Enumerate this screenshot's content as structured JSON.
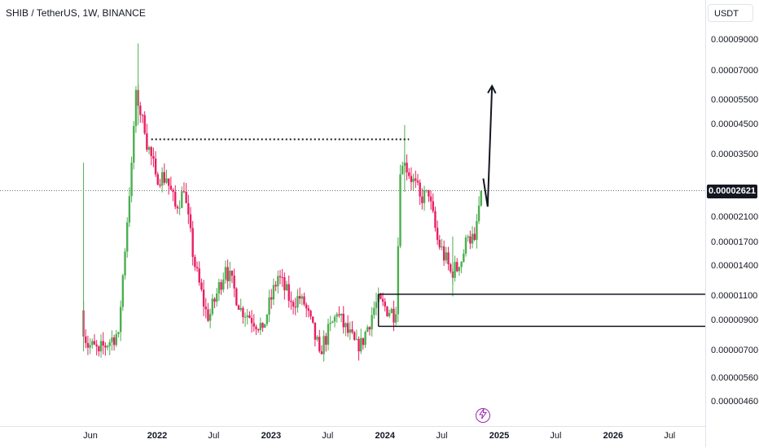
{
  "header": {
    "title": "SHIB / TetherUS, 1W, BINANCE"
  },
  "price_axis": {
    "currency": "USDT",
    "last_price_label": "0.00002621"
  },
  "icons": {
    "flash": "lightning-icon"
  },
  "colors": {
    "up": "#4caf50",
    "down": "#e91e63",
    "text": "#131722",
    "grid_line": "#e0e3eb"
  },
  "chart_data": {
    "type": "candlestick",
    "title": "SHIB / TetherUS, 1W, BINANCE",
    "y_scale": "log",
    "y_ticks": [
      "0.00009000",
      "0.00007000",
      "0.00005500",
      "0.00004500",
      "0.00003500",
      "0.00002100",
      "0.00001700",
      "0.00001400",
      "0.00001100",
      "0.00000900",
      "0.00000700",
      "0.00000560",
      "0.00000460"
    ],
    "x_ticks": [
      {
        "label": "Jun",
        "date": "2021-06-01",
        "year": false
      },
      {
        "label": "2022",
        "date": "2022-01-01",
        "year": true
      },
      {
        "label": "Jul",
        "date": "2022-07-01",
        "year": false
      },
      {
        "label": "2023",
        "date": "2023-01-01",
        "year": true
      },
      {
        "label": "Jul",
        "date": "2023-07-01",
        "year": false
      },
      {
        "label": "2024",
        "date": "2024-01-01",
        "year": true
      },
      {
        "label": "Jul",
        "date": "2024-07-01",
        "year": false
      },
      {
        "label": "2025",
        "date": "2025-01-01",
        "year": true
      },
      {
        "label": "Jul",
        "date": "2025-07-01",
        "year": false
      },
      {
        "label": "2026",
        "date": "2026-01-01",
        "year": true
      },
      {
        "label": "Jul",
        "date": "2026-07-01",
        "year": false
      }
    ],
    "last_price": 2.621e-05,
    "anchors": [
      {
        "date": "2021-05-10",
        "price": 9.8e-06
      },
      {
        "date": "2021-05-24",
        "price": 7.5e-06
      },
      {
        "date": "2021-07-05",
        "price": 7e-06
      },
      {
        "date": "2021-09-06",
        "price": 8.2e-06
      },
      {
        "date": "2021-10-18",
        "price": 3.3e-05
      },
      {
        "date": "2021-11-01",
        "price": 6e-05
      },
      {
        "date": "2021-11-29",
        "price": 4.2e-05
      },
      {
        "date": "2022-01-03",
        "price": 3e-05
      },
      {
        "date": "2022-02-07",
        "price": 2.9e-05
      },
      {
        "date": "2022-03-07",
        "price": 2.3e-05
      },
      {
        "date": "2022-04-04",
        "price": 2.6e-05
      },
      {
        "date": "2022-05-09",
        "price": 1.4e-05
      },
      {
        "date": "2022-06-20",
        "price": 9e-06
      },
      {
        "date": "2022-08-15",
        "price": 1.4e-05
      },
      {
        "date": "2022-10-03",
        "price": 1e-05
      },
      {
        "date": "2022-12-12",
        "price": 8.5e-06
      },
      {
        "date": "2023-01-30",
        "price": 1.3e-05
      },
      {
        "date": "2023-03-13",
        "price": 1.05e-05
      },
      {
        "date": "2023-04-17",
        "price": 1.1e-05
      },
      {
        "date": "2023-06-12",
        "price": 7e-06
      },
      {
        "date": "2023-08-07",
        "price": 9.5e-06
      },
      {
        "date": "2023-10-16",
        "price": 7e-06
      },
      {
        "date": "2023-12-11",
        "price": 1.05e-05
      },
      {
        "date": "2024-02-12",
        "price": 9.5e-06
      },
      {
        "date": "2024-02-26",
        "price": 3e-05
      },
      {
        "date": "2024-03-11",
        "price": 3.3e-05
      },
      {
        "date": "2024-04-29",
        "price": 2.5e-05
      },
      {
        "date": "2024-05-27",
        "price": 2.5e-05
      },
      {
        "date": "2024-06-24",
        "price": 1.75e-05
      },
      {
        "date": "2024-08-05",
        "price": 1.35e-05
      },
      {
        "date": "2024-09-02",
        "price": 1.4e-05
      },
      {
        "date": "2024-09-30",
        "price": 1.8e-05
      },
      {
        "date": "2024-10-21",
        "price": 1.75e-05
      },
      {
        "date": "2024-11-11",
        "price": 2.62e-05
      }
    ],
    "annotations": {
      "resistance_dotted": {
        "from": "2021-12-13",
        "to": "2024-03-18",
        "price": 4e-05
      },
      "support_lines": [
        {
          "from": "2023-12-11",
          "price": 1.12e-05
        },
        {
          "from": "2023-12-11",
          "price": 8.6e-06
        }
      ],
      "support_box_left": {
        "date": "2023-12-11",
        "top": 1.12e-05,
        "bottom": 8.6e-06
      },
      "forecast_arrow": [
        {
          "date": "2024-11-11",
          "price": 2.9e-05
        },
        {
          "date": "2024-11-25",
          "price": 2.3e-05
        },
        {
          "date": "2024-12-09",
          "price": 6.2e-05
        }
      ]
    }
  }
}
